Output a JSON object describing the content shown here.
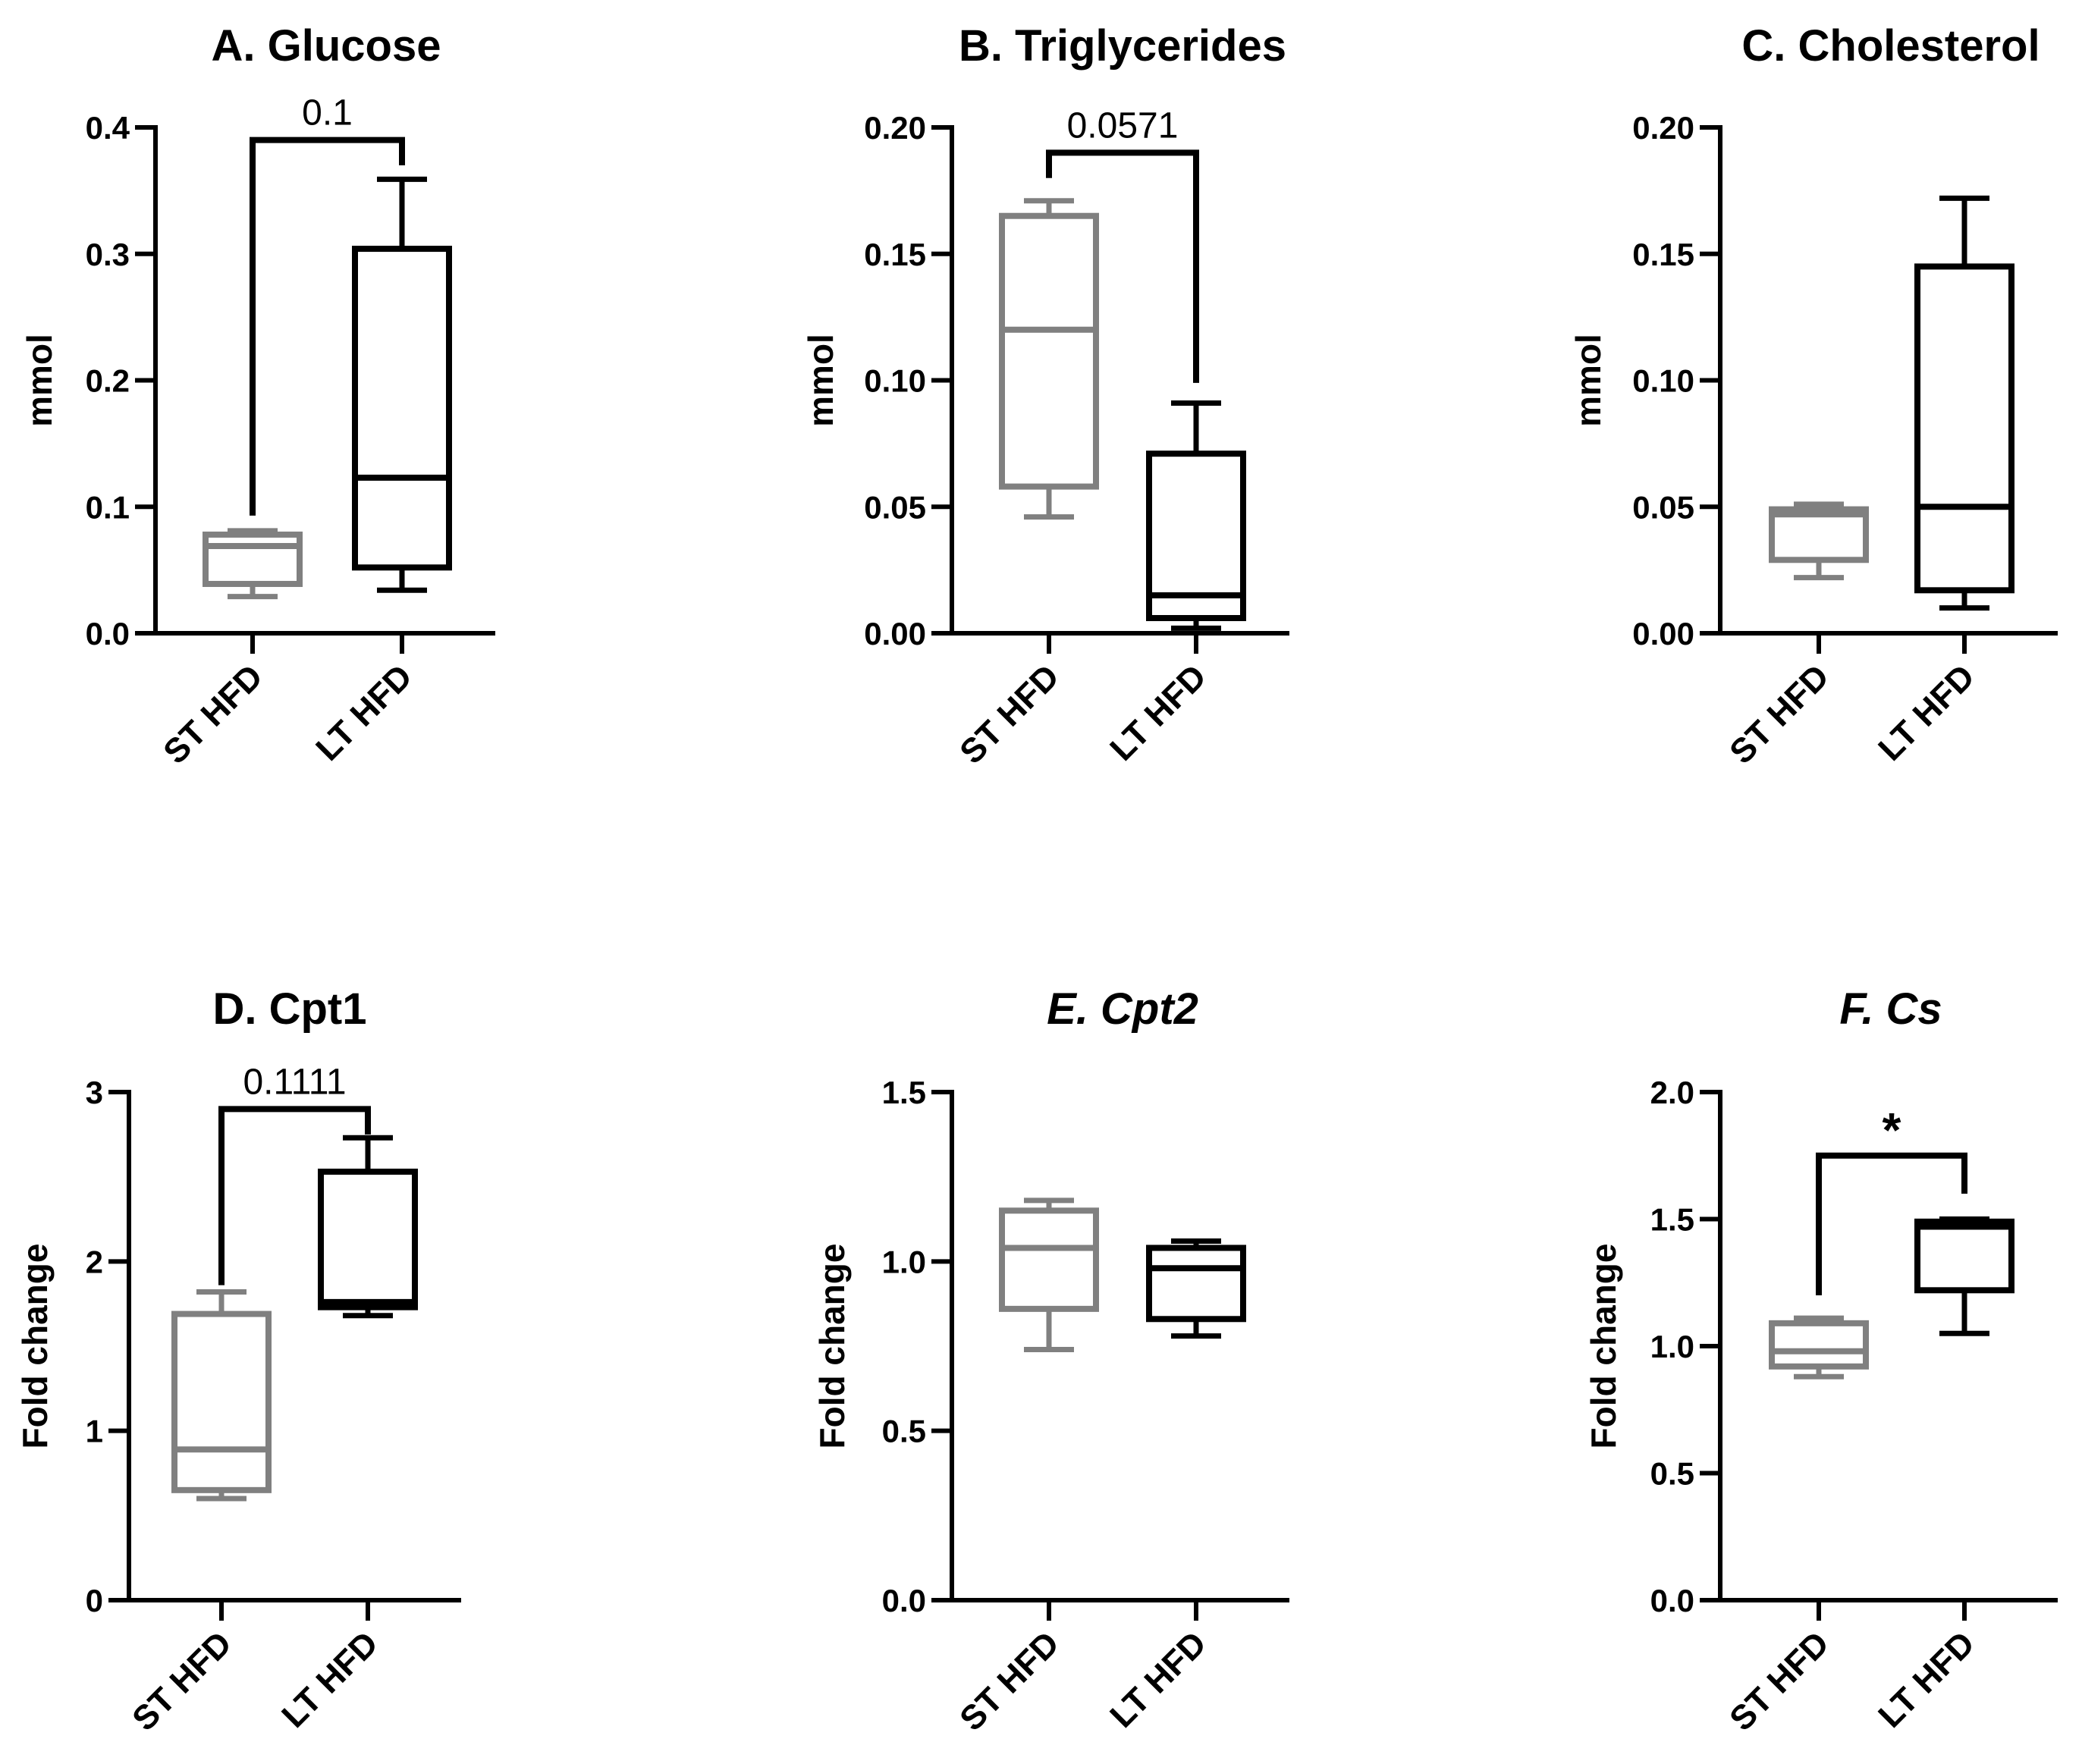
{
  "figure": {
    "background": "#ffffff",
    "series_colors": {
      "ST HFD": "#808080",
      "LT HFD": "#000000"
    }
  },
  "chart_data": [
    {
      "panel": "A",
      "type": "box",
      "title": "A. Glucose",
      "title_italic": false,
      "ylabel": "mmol",
      "ylim": [
        0,
        0.4
      ],
      "yticks": [
        0,
        0.1,
        0.2,
        0.3,
        0.4
      ],
      "ytick_labels": [
        "0.0",
        "0.1",
        "0.2",
        "0.3",
        "0.4"
      ],
      "categories": [
        "ST HFD",
        "LT HFD"
      ],
      "series": [
        {
          "name": "ST HFD",
          "min": 0.029,
          "q1": 0.039,
          "median": 0.069,
          "q3": 0.078,
          "max": 0.081
        },
        {
          "name": "LT HFD",
          "min": 0.034,
          "q1": 0.052,
          "median": 0.123,
          "q3": 0.304,
          "max": 0.359
        }
      ],
      "comparison": {
        "label": "0.1",
        "type": "p-value",
        "top": 0.39,
        "left_end": 0.093,
        "right_end": 0.37
      }
    },
    {
      "panel": "B",
      "type": "box",
      "title": "B. Triglycerides",
      "title_italic": false,
      "ylabel": "mmol",
      "ylim": [
        0,
        0.2
      ],
      "yticks": [
        0,
        0.05,
        0.1,
        0.15,
        0.2
      ],
      "ytick_labels": [
        "0.00",
        "0.05",
        "0.10",
        "0.15",
        "0.20"
      ],
      "categories": [
        "ST HFD",
        "LT HFD"
      ],
      "series": [
        {
          "name": "ST HFD",
          "min": 0.046,
          "q1": 0.058,
          "median": 0.12,
          "q3": 0.165,
          "max": 0.171
        },
        {
          "name": "LT HFD",
          "min": 0.002,
          "q1": 0.006,
          "median": 0.015,
          "q3": 0.071,
          "max": 0.091
        }
      ],
      "comparison": {
        "label": "0.0571",
        "type": "p-value",
        "top": 0.19,
        "left_end": 0.18,
        "right_end": 0.099
      }
    },
    {
      "panel": "C",
      "type": "box",
      "title": "C. Cholesterol",
      "title_italic": false,
      "ylabel": "mmol",
      "ylim": [
        0,
        0.2
      ],
      "yticks": [
        0,
        0.05,
        0.1,
        0.15,
        0.2
      ],
      "ytick_labels": [
        "0.00",
        "0.05",
        "0.10",
        "0.15",
        "0.20"
      ],
      "categories": [
        "ST HFD",
        "LT HFD"
      ],
      "series": [
        {
          "name": "ST HFD",
          "min": 0.022,
          "q1": 0.029,
          "median": 0.047,
          "q3": 0.049,
          "max": 0.051
        },
        {
          "name": "LT HFD",
          "min": 0.01,
          "q1": 0.017,
          "median": 0.05,
          "q3": 0.145,
          "max": 0.172
        }
      ]
    },
    {
      "panel": "D",
      "type": "box",
      "title": "D. Cpt1",
      "title_italic": false,
      "ylabel": "Fold change",
      "ylim": [
        0,
        3
      ],
      "yticks": [
        0,
        1,
        2,
        3
      ],
      "ytick_labels": [
        "0",
        "1",
        "2",
        "3"
      ],
      "categories": [
        "ST HFD",
        "LT HFD"
      ],
      "series": [
        {
          "name": "ST HFD",
          "min": 0.6,
          "q1": 0.65,
          "median": 0.89,
          "q3": 1.69,
          "max": 1.82
        },
        {
          "name": "LT HFD",
          "min": 1.68,
          "q1": 1.73,
          "median": 1.76,
          "q3": 2.53,
          "max": 2.73
        }
      ],
      "comparison": {
        "label": "0.1111",
        "type": "p-value",
        "top": 2.9,
        "left_end": 1.86,
        "right_end": 2.75
      }
    },
    {
      "panel": "E",
      "type": "box",
      "title": "E. Cpt2",
      "title_italic": true,
      "ylabel": "Fold change",
      "ylim": [
        0,
        1.5
      ],
      "yticks": [
        0,
        0.5,
        1,
        1.5
      ],
      "ytick_labels": [
        "0.0",
        "0.5",
        "1.0",
        "1.5"
      ],
      "categories": [
        "ST HFD",
        "LT HFD"
      ],
      "series": [
        {
          "name": "ST HFD",
          "min": 0.74,
          "q1": 0.86,
          "median": 1.04,
          "q3": 1.15,
          "max": 1.18
        },
        {
          "name": "LT HFD",
          "min": 0.78,
          "q1": 0.83,
          "median": 0.98,
          "q3": 1.04,
          "max": 1.06
        }
      ]
    },
    {
      "panel": "F",
      "type": "box",
      "title": "F. Cs",
      "title_italic": true,
      "ylabel": "Fold change",
      "ylim": [
        0,
        2
      ],
      "yticks": [
        0,
        0.5,
        1,
        1.5,
        2
      ],
      "ytick_labels": [
        "0.0",
        "0.5",
        "1.0",
        "1.5",
        "2.0"
      ],
      "categories": [
        "ST HFD",
        "LT HFD"
      ],
      "series": [
        {
          "name": "ST HFD",
          "min": 0.88,
          "q1": 0.92,
          "median": 0.98,
          "q3": 1.09,
          "max": 1.11
        },
        {
          "name": "LT HFD",
          "min": 1.05,
          "q1": 1.22,
          "median": 1.47,
          "q3": 1.49,
          "max": 1.5
        }
      ],
      "comparison": {
        "label": "*",
        "type": "significance",
        "top": 1.75,
        "left_end": 1.2,
        "right_end": 1.6
      }
    }
  ]
}
